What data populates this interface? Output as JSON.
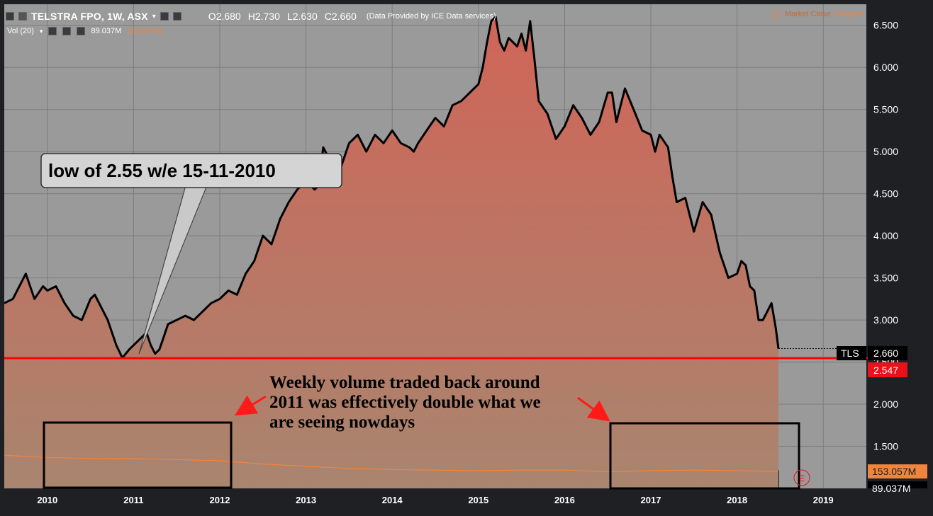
{
  "header": {
    "symbol": "TELSTRA FPO, 1W, ASX",
    "open_label": "O",
    "open_value": "2.680",
    "high_label": "H",
    "high_value": "2.730",
    "low_label": "L",
    "low_value": "2.630",
    "close_label": "C",
    "close_value": "2.660",
    "data_source": "(Data Provided by ICE Data services)",
    "market_status": "Market Close",
    "delayed": "Delayed"
  },
  "volume_header": {
    "label": "Vol (20)",
    "volume": "89.037M",
    "volume_ma": "153.057M"
  },
  "annotations": {
    "callout_text": "low of 2.55 w/e 15-11-2010",
    "volume_note_line1": "Weekly volume traded back around",
    "volume_note_line2": "2011 was effectively double what we",
    "volume_note_line3": "are seeing nowdays"
  },
  "price_tags": {
    "symbol_tag": "TLS",
    "last_price": "2.660",
    "support_level": "2.547",
    "volume_ma_tag": "153.057M",
    "volume_tag": "89.037M"
  },
  "earnings_marker": "E",
  "colors": {
    "background": "#9a9a9a",
    "frame": "#1f2024",
    "price_line": "#000000",
    "area_top": "#d06558",
    "area_bottom": "#a9856f",
    "support_line": "#ff0000",
    "volume_ma_line": "#f0843c",
    "accent_orange": "#f0843c"
  },
  "chart_data": {
    "type": "area",
    "title": "TELSTRA FPO, 1W, ASX",
    "y_axis": {
      "ylim": [
        1.0,
        6.75
      ],
      "ticks": [
        "1.500",
        "2.000",
        "2.500",
        "3.000",
        "3.500",
        "4.000",
        "4.500",
        "5.000",
        "5.500",
        "6.000",
        "6.500"
      ],
      "position": "right"
    },
    "x_axis": {
      "xlim": [
        2009.5,
        2019.5
      ],
      "ticks": [
        "2010",
        "2011",
        "2012",
        "2013",
        "2014",
        "2015",
        "2016",
        "2017",
        "2018",
        "2019"
      ]
    },
    "grid": true,
    "series": [
      {
        "name": "Close",
        "x": [
          2009.5,
          2009.6,
          2009.7,
          2009.75,
          2009.85,
          2009.95,
          2010.0,
          2010.1,
          2010.2,
          2010.3,
          2010.4,
          2010.5,
          2010.55,
          2010.6,
          2010.7,
          2010.8,
          2010.87,
          2010.95,
          2011.05,
          2011.15,
          2011.2,
          2011.25,
          2011.3,
          2011.35,
          2011.4,
          2011.5,
          2011.6,
          2011.7,
          2011.8,
          2011.9,
          2012.0,
          2012.1,
          2012.2,
          2012.3,
          2012.4,
          2012.5,
          2012.6,
          2012.7,
          2012.8,
          2012.9,
          2013.0,
          2013.05,
          2013.1,
          2013.15,
          2013.2,
          2013.3,
          2013.35,
          2013.4,
          2013.5,
          2013.6,
          2013.7,
          2013.8,
          2013.9,
          2014.0,
          2014.1,
          2014.2,
          2014.25,
          2014.3,
          2014.4,
          2014.5,
          2014.6,
          2014.7,
          2014.8,
          2014.9,
          2015.0,
          2015.05,
          2015.1,
          2015.15,
          2015.2,
          2015.25,
          2015.3,
          2015.35,
          2015.4,
          2015.45,
          2015.5,
          2015.55,
          2015.6,
          2015.65,
          2015.7,
          2015.8,
          2015.9,
          2016.0,
          2016.1,
          2016.2,
          2016.3,
          2016.4,
          2016.5,
          2016.55,
          2016.6,
          2016.7,
          2016.8,
          2016.9,
          2017.0,
          2017.05,
          2017.1,
          2017.2,
          2017.25,
          2017.3,
          2017.4,
          2017.5,
          2017.6,
          2017.7,
          2017.8,
          2017.9,
          2018.0,
          2018.05,
          2018.1,
          2018.15,
          2018.2,
          2018.25,
          2018.3,
          2018.35,
          2018.4,
          2018.45,
          2018.48
        ],
        "values": [
          3.2,
          3.25,
          3.45,
          3.55,
          3.25,
          3.4,
          3.35,
          3.4,
          3.2,
          3.05,
          3.0,
          3.25,
          3.3,
          3.2,
          3.0,
          2.7,
          2.55,
          2.65,
          2.75,
          2.85,
          2.7,
          2.6,
          2.65,
          2.8,
          2.95,
          3.0,
          3.05,
          3.0,
          3.1,
          3.2,
          3.25,
          3.35,
          3.3,
          3.55,
          3.7,
          4.0,
          3.9,
          4.2,
          4.4,
          4.55,
          4.65,
          4.6,
          4.55,
          4.6,
          5.05,
          4.85,
          4.95,
          4.8,
          5.1,
          5.2,
          5.0,
          5.2,
          5.1,
          5.25,
          5.1,
          5.05,
          5.0,
          5.1,
          5.25,
          5.4,
          5.3,
          5.55,
          5.6,
          5.7,
          5.8,
          6.0,
          6.3,
          6.55,
          6.6,
          6.3,
          6.2,
          6.35,
          6.3,
          6.25,
          6.4,
          6.2,
          6.55,
          6.1,
          5.6,
          5.45,
          5.15,
          5.3,
          5.55,
          5.4,
          5.2,
          5.35,
          5.7,
          5.7,
          5.35,
          5.75,
          5.5,
          5.25,
          5.2,
          5.0,
          5.2,
          5.05,
          4.7,
          4.4,
          4.45,
          4.05,
          4.4,
          4.25,
          3.8,
          3.5,
          3.55,
          3.7,
          3.65,
          3.4,
          3.35,
          3.0,
          3.0,
          3.1,
          3.2,
          2.9,
          2.66
        ]
      },
      {
        "name": "Vol (20)",
        "x": [
          2009.5,
          2010.0,
          2010.5,
          2011.0,
          2011.5,
          2012.0,
          2012.5,
          2013.0,
          2013.5,
          2014.0,
          2014.5,
          2015.0,
          2015.5,
          2016.0,
          2016.5,
          2017.0,
          2017.5,
          2018.0,
          2018.48
        ],
        "values": [
          300,
          280,
          270,
          270,
          260,
          250,
          220,
          200,
          180,
          170,
          165,
          160,
          165,
          165,
          150,
          160,
          165,
          160,
          153
        ]
      }
    ],
    "horizontal_lines": [
      {
        "value": 2.547,
        "label": "2.547"
      }
    ],
    "last_value": 2.66,
    "volume_ma_last": "153.057M",
    "volume_last": "89.037M"
  }
}
